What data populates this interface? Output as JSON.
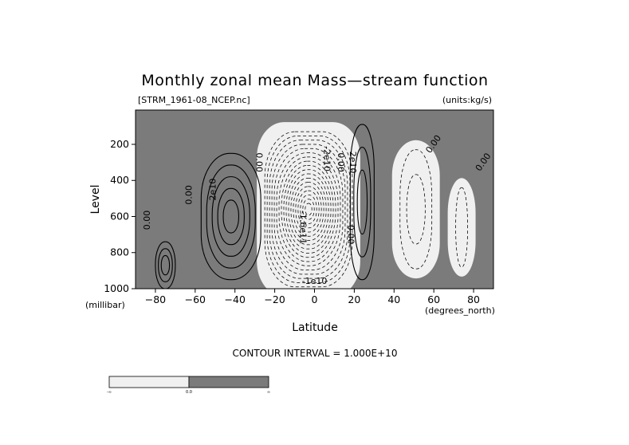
{
  "chart_data": {
    "type": "contour",
    "title": "Monthly zonal mean Mass—stream function",
    "source_file": "[STRM_1961-08_NCEP.nc]",
    "units": "(units:kg/s)",
    "xlabel": "Latitude",
    "ylabel": "Level",
    "x_units": "(degrees_north)",
    "y_units": "(millibar)",
    "xlim": [
      -90,
      90
    ],
    "ylim": [
      1000,
      10
    ],
    "x_ticks": [
      -80,
      -60,
      -40,
      -20,
      0,
      20,
      40,
      60,
      80
    ],
    "x_tick_labels": [
      "−80",
      "−60",
      "−40",
      "−20",
      "0",
      "20",
      "40",
      "60",
      "80"
    ],
    "y_ticks": [
      200,
      400,
      600,
      800,
      1000
    ],
    "y_tick_labels": [
      "200",
      "400",
      "600",
      "800",
      "1000"
    ],
    "contour_interval_text": "CONTOUR INTERVAL = 1.000E+10",
    "contour_interval": 10000000000.0,
    "shading": {
      "negative_color": "#f0f0f0",
      "positive_color": "#7b7b7b"
    },
    "colorbar_labels": [
      "-∞",
      "0.0",
      "∞"
    ],
    "cells": [
      {
        "center_lat": -75,
        "center_level": 870,
        "half_width": 5,
        "half_height": 130,
        "sign": "+",
        "rings": 3
      },
      {
        "center_lat": -42,
        "center_level": 600,
        "half_width": 15,
        "half_height": 350,
        "sign": "+",
        "rings": 5
      },
      {
        "center_lat": -3,
        "center_level": 560,
        "half_width": 22,
        "half_height": 430,
        "sign": "-",
        "rings": 18
      },
      {
        "center_lat": 24,
        "center_level": 520,
        "half_width": 6,
        "half_height": 430,
        "sign": "+",
        "rings": 3
      },
      {
        "center_lat": 51,
        "center_level": 560,
        "half_width": 8,
        "half_height": 330,
        "sign": "-",
        "rings": 2
      },
      {
        "center_lat": 74,
        "center_level": 660,
        "half_width": 3,
        "half_height": 220,
        "sign": "-",
        "rings": 1
      }
    ],
    "contour_labels": [
      {
        "text": "0.00",
        "lat": -84,
        "level": 620,
        "rotate": -90
      },
      {
        "text": "0.00",
        "lat": -63,
        "level": 480,
        "rotate": -90
      },
      {
        "text": "2e10",
        "lat": -51,
        "level": 450,
        "rotate": -90
      },
      {
        "text": "0.00",
        "lat": -28,
        "level": 300,
        "rotate": 90
      },
      {
        "text": "-1.6e11",
        "lat": -6,
        "level": 660,
        "rotate": 90
      },
      {
        "text": "-2e10",
        "lat": 6,
        "level": 280,
        "rotate": 90
      },
      {
        "text": "0.00",
        "lat": 13,
        "level": 300,
        "rotate": 90
      },
      {
        "text": "2e10",
        "lat": 19,
        "level": 300,
        "rotate": 90
      },
      {
        "text": "0.00",
        "lat": 18,
        "level": 700,
        "rotate": 90
      },
      {
        "text": "-1e10",
        "lat": 0,
        "level": 960,
        "rotate": 0
      },
      {
        "text": "0.00",
        "lat": 60,
        "level": 200,
        "rotate": -55
      },
      {
        "text": "0.00",
        "lat": 85,
        "level": 300,
        "rotate": -55
      }
    ]
  }
}
